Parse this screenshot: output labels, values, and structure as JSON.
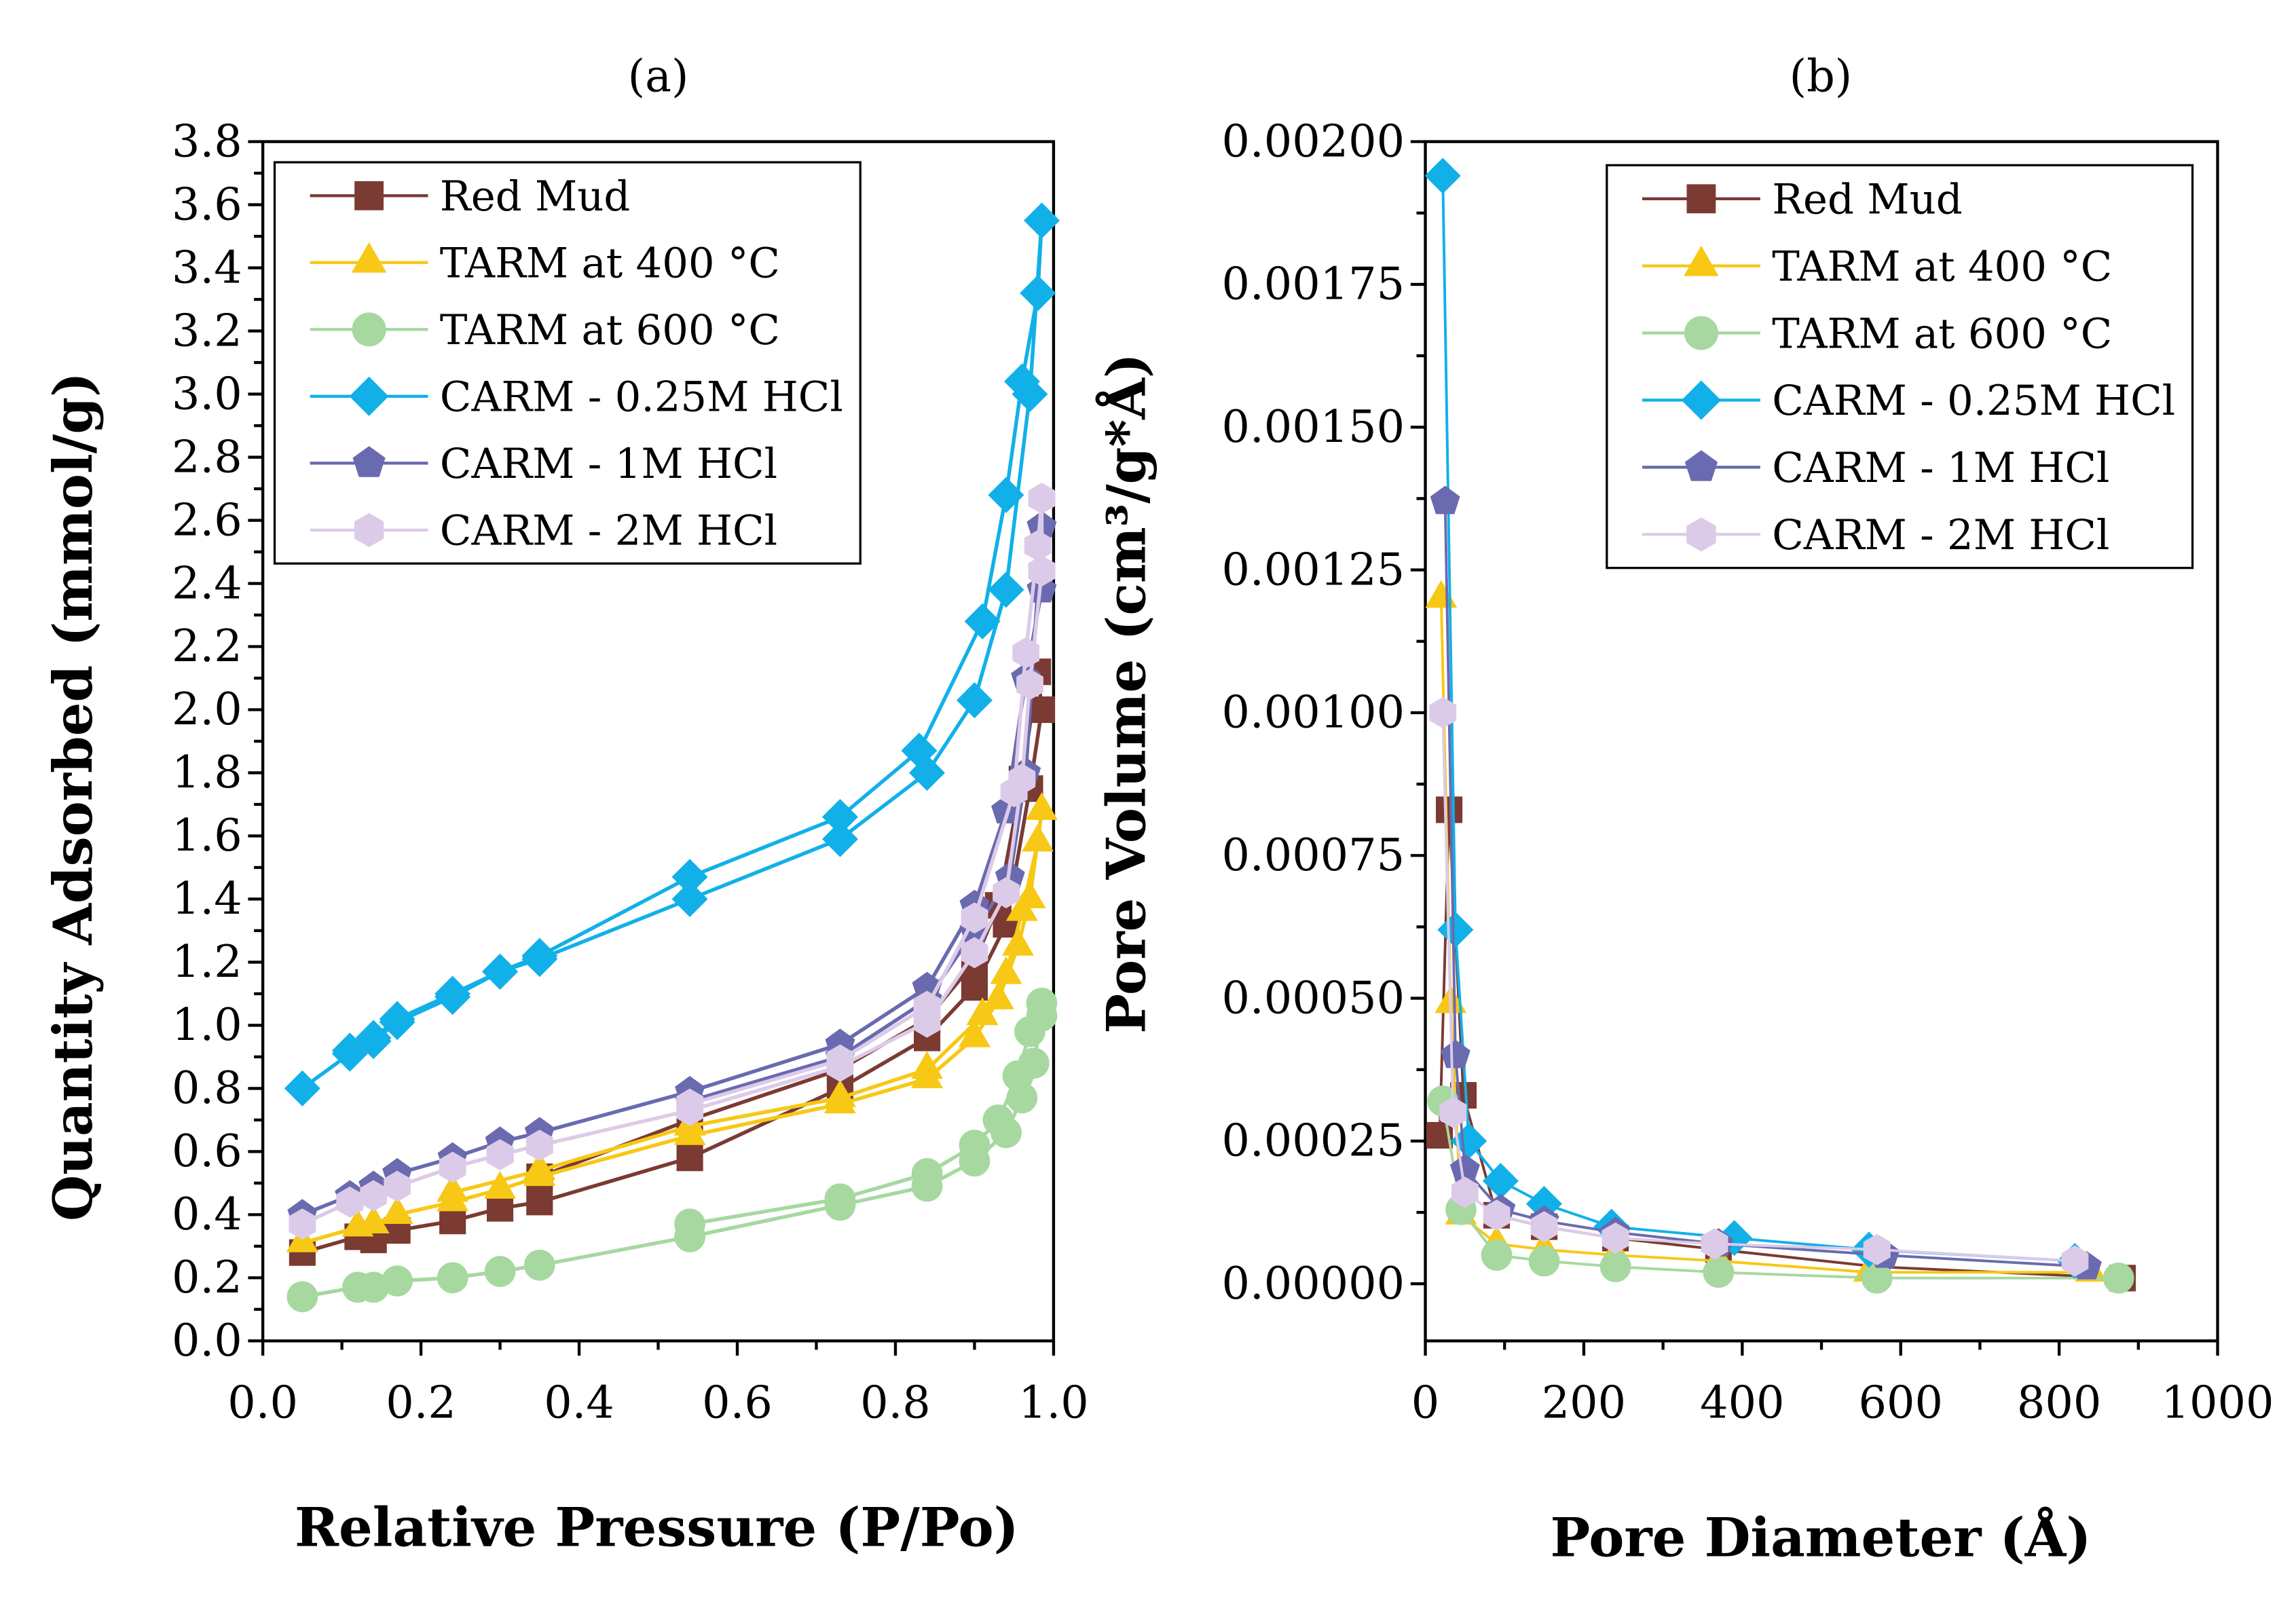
{
  "chart_data": [
    {
      "type": "scatter",
      "panel_label": "(a)",
      "xlabel": "Relative  Pressure (P/Po)",
      "ylabel": "Quantity  Adsorbed (mmol/g)",
      "xlim": [
        0,
        1.0
      ],
      "ylim": [
        0,
        3.8
      ],
      "xticks": [
        "0.0",
        "0.2",
        "0.4",
        "0.6",
        "0.8",
        "1.0"
      ],
      "yticks": [
        "0.0",
        "0.2",
        "0.4",
        "0.6",
        "0.8",
        "1.0",
        "1.2",
        "1.4",
        "1.6",
        "1.8",
        "2.0",
        "2.2",
        "2.4",
        "2.6",
        "2.8",
        "3.0",
        "3.2",
        "3.4",
        "3.6",
        "3.8"
      ],
      "grid": false,
      "legend_position": "top-left",
      "series": [
        {
          "name": "Red Mud",
          "color": "#7b3a32",
          "marker": "square",
          "x": [
            0.05,
            0.12,
            0.14,
            0.17,
            0.24,
            0.3,
            0.35,
            0.54,
            0.73,
            0.84,
            0.9,
            0.94,
            0.97,
            0.985,
            0.98,
            0.96,
            0.93,
            0.9,
            0.84,
            0.73,
            0.54,
            0.35
          ],
          "y": [
            0.28,
            0.33,
            0.32,
            0.35,
            0.38,
            0.42,
            0.44,
            0.58,
            0.8,
            0.96,
            1.12,
            1.32,
            1.75,
            2.0,
            2.12,
            1.78,
            1.38,
            1.2,
            1.02,
            0.86,
            0.7,
            0.52
          ]
        },
        {
          "name": "TARM at 400 °C",
          "color": "#f7c815",
          "marker": "triangle",
          "x": [
            0.05,
            0.12,
            0.14,
            0.17,
            0.24,
            0.3,
            0.35,
            0.54,
            0.73,
            0.84,
            0.9,
            0.93,
            0.955,
            0.97,
            0.985,
            0.98,
            0.96,
            0.94,
            0.91,
            0.84,
            0.73,
            0.54,
            0.35,
            0.24
          ],
          "y": [
            0.31,
            0.36,
            0.37,
            0.4,
            0.44,
            0.48,
            0.52,
            0.65,
            0.75,
            0.83,
            0.96,
            1.08,
            1.25,
            1.4,
            1.68,
            1.58,
            1.36,
            1.16,
            1.03,
            0.86,
            0.77,
            0.68,
            0.54,
            0.47
          ]
        },
        {
          "name": "TARM at 600 °C",
          "color": "#a6d8a0",
          "marker": "circle",
          "x": [
            0.05,
            0.12,
            0.14,
            0.17,
            0.24,
            0.3,
            0.35,
            0.54,
            0.73,
            0.84,
            0.9,
            0.94,
            0.96,
            0.975,
            0.985,
            0.985,
            0.97,
            0.955,
            0.93,
            0.9,
            0.84,
            0.73,
            0.54
          ],
          "y": [
            0.14,
            0.17,
            0.17,
            0.19,
            0.2,
            0.22,
            0.24,
            0.33,
            0.43,
            0.49,
            0.57,
            0.66,
            0.77,
            0.88,
            1.03,
            1.07,
            0.98,
            0.84,
            0.7,
            0.62,
            0.53,
            0.45,
            0.37
          ]
        },
        {
          "name": "CARM - 0.25M HCl",
          "color": "#12b0e8",
          "marker": "diamond",
          "x": [
            0.05,
            0.11,
            0.14,
            0.17,
            0.24,
            0.3,
            0.35,
            0.54,
            0.73,
            0.84,
            0.9,
            0.94,
            0.97,
            0.985,
            0.98,
            0.96,
            0.94,
            0.91,
            0.83,
            0.73,
            0.54,
            0.35,
            0.3,
            0.24,
            0.17,
            0.14,
            0.11
          ],
          "y": [
            0.8,
            0.91,
            0.95,
            1.01,
            1.09,
            1.17,
            1.21,
            1.4,
            1.59,
            1.8,
            2.03,
            2.38,
            3.0,
            3.55,
            3.32,
            3.04,
            2.68,
            2.28,
            1.87,
            1.66,
            1.47,
            1.22,
            1.17,
            1.1,
            1.02,
            0.96,
            0.92
          ]
        },
        {
          "name": "CARM - 1M HCl",
          "color": "#6a6ab0",
          "marker": "pentagon",
          "x": [
            0.05,
            0.11,
            0.14,
            0.17,
            0.24,
            0.3,
            0.35,
            0.54,
            0.73,
            0.84,
            0.9,
            0.94,
            0.965,
            0.985,
            0.985,
            0.965,
            0.945,
            0.9,
            0.84,
            0.73,
            0.54
          ],
          "y": [
            0.4,
            0.46,
            0.49,
            0.53,
            0.58,
            0.63,
            0.66,
            0.79,
            0.94,
            1.12,
            1.38,
            1.68,
            2.1,
            2.38,
            2.58,
            1.8,
            1.47,
            1.3,
            1.08,
            0.9,
            0.76
          ]
        },
        {
          "name": "CARM - 2M HCl",
          "color": "#dccbe8",
          "marker": "hexagon",
          "x": [
            0.05,
            0.11,
            0.14,
            0.17,
            0.24,
            0.3,
            0.35,
            0.54,
            0.73,
            0.84,
            0.9,
            0.94,
            0.96,
            0.97,
            0.985,
            0.985,
            0.98,
            0.965,
            0.95,
            0.9,
            0.84,
            0.73,
            0.54
          ],
          "y": [
            0.37,
            0.44,
            0.46,
            0.49,
            0.55,
            0.59,
            0.62,
            0.73,
            0.87,
            1.01,
            1.23,
            1.42,
            1.78,
            2.08,
            2.44,
            2.67,
            2.52,
            2.18,
            1.74,
            1.34,
            1.06,
            0.89,
            0.75
          ]
        }
      ]
    },
    {
      "type": "line",
      "panel_label": "(b)",
      "xlabel": "Pore Diameter (Å)",
      "ylabel": "Pore Volume (cm³/g*Å)",
      "xlim": [
        0,
        1000
      ],
      "ylim": [
        -0.0001,
        0.002
      ],
      "xticks": [
        "0",
        "200",
        "400",
        "600",
        "800",
        "1000"
      ],
      "yticks": [
        "0.00000",
        "0.00025",
        "0.00050",
        "0.00075",
        "0.00100",
        "0.00125",
        "0.00150",
        "0.00175",
        "0.00200"
      ],
      "grid": false,
      "legend_position": "top-right",
      "series": [
        {
          "name": "Red Mud",
          "color": "#7b3a32",
          "marker": "square",
          "x": [
            18,
            30,
            48,
            90,
            150,
            240,
            370,
            570,
            880
          ],
          "y": [
            0.00026,
            0.00083,
            0.00033,
            0.00012,
            0.0001,
            8e-05,
            6e-05,
            3e-05,
            1e-05
          ]
        },
        {
          "name": "TARM at 400 °C",
          "color": "#f7c815",
          "marker": "triangle",
          "x": [
            20,
            32,
            45,
            90,
            150,
            240,
            370,
            560,
            840
          ],
          "y": [
            0.0012,
            0.00049,
            0.00012,
            7e-05,
            6e-05,
            5e-05,
            4e-05,
            2e-05,
            2e-05
          ]
        },
        {
          "name": "TARM at 600 °C",
          "color": "#a6d8a0",
          "marker": "circle",
          "x": [
            22,
            45,
            90,
            150,
            240,
            370,
            570,
            875
          ],
          "y": [
            0.00032,
            0.00013,
            5e-05,
            4e-05,
            3e-05,
            2e-05,
            1e-05,
            1e-05
          ]
        },
        {
          "name": "CARM - 0.25M HCl",
          "color": "#12b0e8",
          "marker": "diamond",
          "x": [
            22,
            38,
            55,
            95,
            150,
            235,
            390,
            560,
            820
          ],
          "y": [
            0.00194,
            0.00062,
            0.00025,
            0.00018,
            0.00014,
            0.0001,
            8e-05,
            6e-05,
            4e-05
          ]
        },
        {
          "name": "CARM - 1M HCl",
          "color": "#6a6ab0",
          "marker": "pentagon",
          "x": [
            25,
            38,
            50,
            95,
            150,
            240,
            370,
            580,
            835
          ],
          "y": [
            0.00137,
            0.0004,
            0.0002,
            0.00013,
            0.00011,
            9e-05,
            7e-05,
            5e-05,
            3e-05
          ]
        },
        {
          "name": "CARM - 2M HCl",
          "color": "#dccbe8",
          "marker": "hexagon",
          "x": [
            22,
            35,
            50,
            90,
            150,
            240,
            365,
            570,
            820
          ],
          "y": [
            0.001,
            0.0003,
            0.00016,
            0.00012,
            0.0001,
            8e-05,
            7e-05,
            6e-05,
            4e-05
          ]
        }
      ]
    }
  ]
}
